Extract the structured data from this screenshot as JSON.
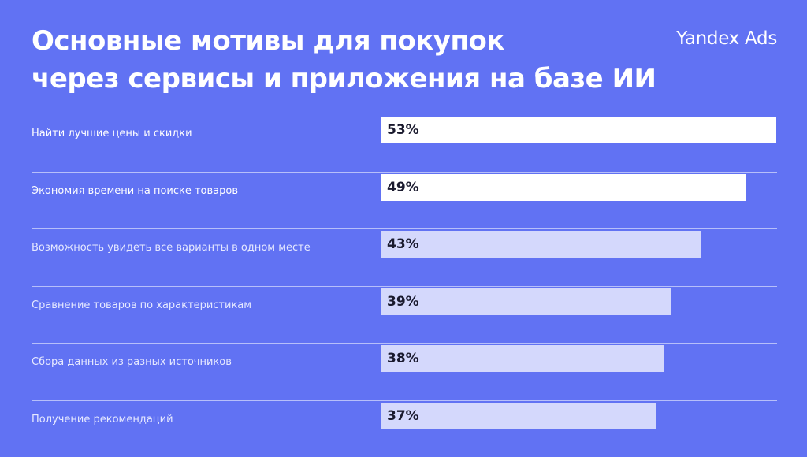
{
  "header": {
    "title_line1": "Основные мотивы для покупок",
    "title_line2": "через сервисы и приложения на базе ИИ",
    "logo_text": "Yandex Ads"
  },
  "colors": {
    "background": "#6172f3",
    "bar_highlight": "#ffffff",
    "bar_regular": "#d4d8fc",
    "text_dark": "#1a1a2e"
  },
  "chart_data": {
    "type": "bar",
    "orientation": "horizontal",
    "title": "Основные мотивы для покупок через сервисы и приложения на базе ИИ",
    "xlim": [
      0,
      53
    ],
    "categories": [
      "Найти лучшие цены и скидки",
      "Экономия времени на поиске товаров",
      "Возможность увидеть все варианты в одном месте",
      "Сравнение товаров по характеристикам",
      "Сбора данных из разных источников",
      "Получение рекомендаций"
    ],
    "values": [
      53,
      49,
      43,
      39,
      38,
      37
    ],
    "value_labels": [
      "53%",
      "49%",
      "43%",
      "39%",
      "38%",
      "37%"
    ],
    "highlighted": [
      true,
      true,
      false,
      false,
      false,
      false
    ]
  }
}
